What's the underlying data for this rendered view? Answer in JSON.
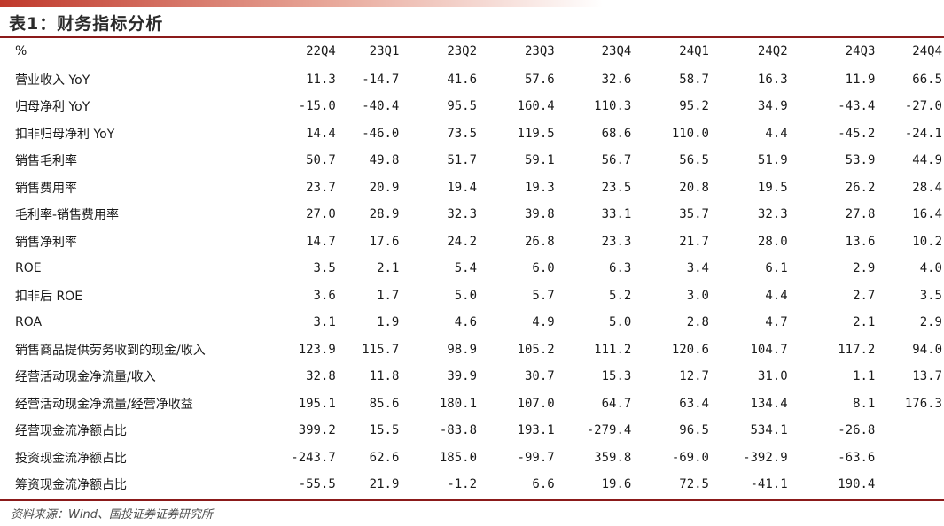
{
  "title": "表1：财务指标分析",
  "header": {
    "unit": "%",
    "columns": [
      "22Q4",
      "23Q1",
      "23Q2",
      "23Q3",
      "23Q4",
      "24Q1",
      "24Q2",
      "24Q3",
      "24Q4"
    ]
  },
  "rows": [
    {
      "label": "营业收入 YoY",
      "values": [
        "11.3",
        "-14.7",
        "41.6",
        "57.6",
        "32.6",
        "58.7",
        "16.3",
        "11.9",
        "66.5"
      ]
    },
    {
      "label": "归母净利 YoY",
      "values": [
        "-15.0",
        "-40.4",
        "95.5",
        "160.4",
        "110.3",
        "95.2",
        "34.9",
        "-43.4",
        "-27.0"
      ]
    },
    {
      "label": "扣非归母净利 YoY",
      "values": [
        "14.4",
        "-46.0",
        "73.5",
        "119.5",
        "68.6",
        "110.0",
        "4.4",
        "-45.2",
        "-24.1"
      ]
    },
    {
      "label": "销售毛利率",
      "values": [
        "50.7",
        "49.8",
        "51.7",
        "59.1",
        "56.7",
        "56.5",
        "51.9",
        "53.9",
        "44.9"
      ]
    },
    {
      "label": "销售费用率",
      "values": [
        "23.7",
        "20.9",
        "19.4",
        "19.3",
        "23.5",
        "20.8",
        "19.5",
        "26.2",
        "28.4"
      ]
    },
    {
      "label": "毛利率-销售费用率",
      "values": [
        "27.0",
        "28.9",
        "32.3",
        "39.8",
        "33.1",
        "35.7",
        "32.3",
        "27.8",
        "16.4"
      ]
    },
    {
      "label": "销售净利率",
      "values": [
        "14.7",
        "17.6",
        "24.2",
        "26.8",
        "23.3",
        "21.7",
        "28.0",
        "13.6",
        "10.2"
      ]
    },
    {
      "label": "ROE",
      "values": [
        "3.5",
        "2.1",
        "5.4",
        "6.0",
        "6.3",
        "3.4",
        "6.1",
        "2.9",
        "4.0"
      ]
    },
    {
      "label": "扣非后 ROE",
      "values": [
        "3.6",
        "1.7",
        "5.0",
        "5.7",
        "5.2",
        "3.0",
        "4.4",
        "2.7",
        "3.5"
      ]
    },
    {
      "label": "ROA",
      "values": [
        "3.1",
        "1.9",
        "4.6",
        "4.9",
        "5.0",
        "2.8",
        "4.7",
        "2.1",
        "2.9"
      ]
    },
    {
      "label": "销售商品提供劳务收到的现金/收入",
      "values": [
        "123.9",
        "115.7",
        "98.9",
        "105.2",
        "111.2",
        "120.6",
        "104.7",
        "117.2",
        "94.0"
      ]
    },
    {
      "label": "经营活动现金净流量/收入",
      "values": [
        "32.8",
        "11.8",
        "39.9",
        "30.7",
        "15.3",
        "12.7",
        "31.0",
        "1.1",
        "13.7"
      ]
    },
    {
      "label": "经营活动现金净流量/经营净收益",
      "values": [
        "195.1",
        "85.6",
        "180.1",
        "107.0",
        "64.7",
        "63.4",
        "134.4",
        "8.1",
        "176.3"
      ]
    },
    {
      "label": "经营现金流净额占比",
      "values": [
        "399.2",
        "15.5",
        "-83.8",
        "193.1",
        "-279.4",
        "96.5",
        "534.1",
        "-26.8",
        ""
      ]
    },
    {
      "label": "投资现金流净额占比",
      "values": [
        "-243.7",
        "62.6",
        "185.0",
        "-99.7",
        "359.8",
        "-69.0",
        "-392.9",
        "-63.6",
        ""
      ]
    },
    {
      "label": "筹资现金流净额占比",
      "values": [
        "-55.5",
        "21.9",
        "-1.2",
        "6.6",
        "19.6",
        "72.5",
        "-41.1",
        "190.4",
        ""
      ]
    }
  ],
  "source": "资料来源：Wind、国投证券证券研究所"
}
